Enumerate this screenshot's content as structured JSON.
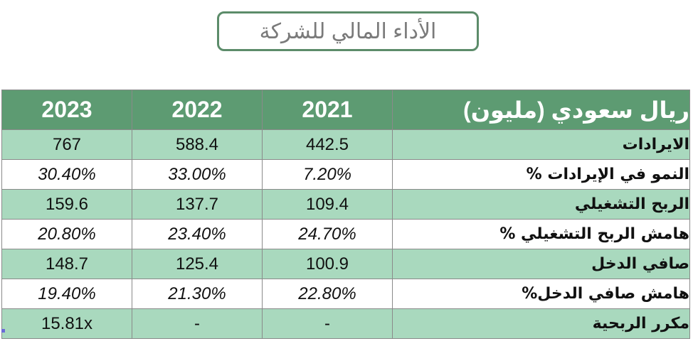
{
  "title": "الأداء المالي للشركة",
  "table": {
    "header": {
      "label": "ريال سعودي (مليون)",
      "years": [
        "2021",
        "2022",
        "2023"
      ]
    },
    "rows": [
      {
        "label": "الايرادات",
        "values": [
          "442.5",
          "588.4",
          "767"
        ],
        "style": "number"
      },
      {
        "label": "النمو في الإيرادات %",
        "values": [
          "7.20%",
          "33.00%",
          "30.40%"
        ],
        "style": "pct"
      },
      {
        "label": "الربح التشغيلي",
        "values": [
          "109.4",
          "137.7",
          "159.6"
        ],
        "style": "number"
      },
      {
        "label": "هامش الربح التشغيلي %",
        "values": [
          "24.70%",
          "23.40%",
          "20.80%"
        ],
        "style": "pct"
      },
      {
        "label": "صافي الدخل",
        "values": [
          "100.9",
          "125.4",
          "148.7"
        ],
        "style": "number"
      },
      {
        "label": "هامش صافي الدخل%",
        "values": [
          "22.80%",
          "21.30%",
          "19.40%"
        ],
        "style": "pct"
      },
      {
        "label": "مكرر الربحية",
        "values": [
          "-",
          "-",
          "15.81x"
        ],
        "style": "number"
      }
    ]
  },
  "colors": {
    "header_bg": "#5d9b72",
    "row_green": "#a9d9be",
    "row_white": "#ffffff",
    "title_border": "#5c8c6a"
  }
}
